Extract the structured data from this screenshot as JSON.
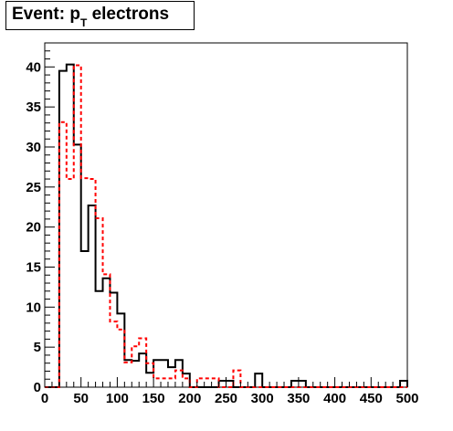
{
  "title": {
    "main": "Event: p",
    "sub": "T",
    "rest": " electrons"
  },
  "chart_data": {
    "type": "histogram",
    "xlim": [
      0,
      500
    ],
    "ylim": [
      0,
      43
    ],
    "x_ticks": [
      0,
      50,
      100,
      150,
      200,
      250,
      300,
      350,
      400,
      450,
      500
    ],
    "y_ticks": [
      0,
      5,
      10,
      15,
      20,
      25,
      30,
      35,
      40
    ],
    "bin_width": 10,
    "series": [
      {
        "style": "solid",
        "color": "#000000",
        "values": [
          0,
          0,
          39.5,
          40.3,
          30.3,
          17,
          22.7,
          12,
          13.6,
          11.8,
          9.2,
          3.4,
          3.3,
          4.2,
          1.8,
          3.4,
          3.4,
          2.5,
          3.4,
          1.7,
          0,
          0,
          0,
          0,
          0.8,
          0.8,
          0,
          0,
          0,
          1.7,
          0,
          0,
          0,
          0,
          0.8,
          0.8,
          0,
          0,
          0,
          0,
          0,
          0,
          0,
          0,
          0,
          0,
          0,
          0,
          0,
          0.8
        ]
      },
      {
        "style": "dashed",
        "color": "#ff0000",
        "values": [
          0,
          0,
          33.1,
          26,
          40.2,
          26.1,
          26,
          21.1,
          14.1,
          8.2,
          7.2,
          3.1,
          5.1,
          6.1,
          3.0,
          1.1,
          1.1,
          1.1,
          2.1,
          1.1,
          0,
          1.1,
          1.1,
          1.1,
          0,
          0,
          2.1,
          0,
          0,
          0,
          0,
          0,
          0,
          0,
          0,
          0,
          0,
          0,
          0,
          0,
          0,
          0,
          0,
          0,
          0,
          0,
          0,
          0,
          0,
          0
        ]
      }
    ]
  }
}
